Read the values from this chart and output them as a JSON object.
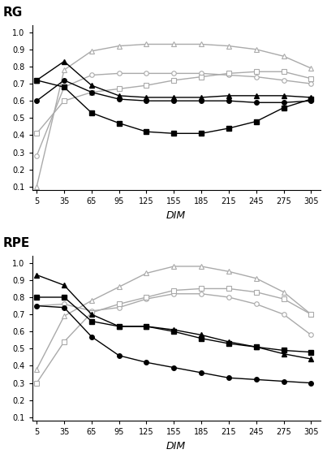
{
  "x": [
    5,
    35,
    65,
    95,
    125,
    155,
    185,
    215,
    245,
    275,
    305
  ],
  "rg": {
    "open_triangle": [
      0.1,
      0.78,
      0.89,
      0.92,
      0.93,
      0.93,
      0.93,
      0.92,
      0.9,
      0.86,
      0.79
    ],
    "open_circle": [
      0.28,
      0.68,
      0.75,
      0.76,
      0.76,
      0.76,
      0.76,
      0.75,
      0.74,
      0.72,
      0.7
    ],
    "open_square": [
      0.41,
      0.6,
      0.65,
      0.67,
      0.69,
      0.72,
      0.74,
      0.76,
      0.77,
      0.77,
      0.73
    ],
    "filled_triangle": [
      0.72,
      0.83,
      0.69,
      0.63,
      0.62,
      0.62,
      0.62,
      0.63,
      0.63,
      0.63,
      0.62
    ],
    "filled_circle": [
      0.6,
      0.72,
      0.65,
      0.61,
      0.6,
      0.6,
      0.6,
      0.6,
      0.59,
      0.59,
      0.6
    ],
    "filled_square": [
      0.72,
      0.68,
      0.53,
      0.47,
      0.42,
      0.41,
      0.41,
      0.44,
      0.48,
      0.56,
      0.61
    ]
  },
  "rpe": {
    "open_triangle": [
      0.38,
      0.69,
      0.78,
      0.86,
      0.94,
      0.98,
      0.98,
      0.95,
      0.91,
      0.83,
      0.7
    ],
    "open_circle": [
      0.75,
      0.76,
      0.72,
      0.74,
      0.79,
      0.82,
      0.82,
      0.8,
      0.76,
      0.7,
      0.58
    ],
    "open_square": [
      0.3,
      0.54,
      0.71,
      0.76,
      0.8,
      0.84,
      0.85,
      0.85,
      0.83,
      0.79,
      0.7
    ],
    "filled_triangle": [
      0.93,
      0.87,
      0.7,
      0.63,
      0.63,
      0.61,
      0.58,
      0.54,
      0.51,
      0.47,
      0.44
    ],
    "filled_circle": [
      0.75,
      0.74,
      0.57,
      0.46,
      0.42,
      0.39,
      0.36,
      0.33,
      0.32,
      0.31,
      0.3
    ],
    "filled_square": [
      0.8,
      0.8,
      0.66,
      0.63,
      0.63,
      0.6,
      0.56,
      0.53,
      0.51,
      0.49,
      0.48
    ]
  },
  "xticks": [
    5,
    35,
    65,
    95,
    125,
    155,
    185,
    215,
    245,
    275,
    305
  ],
  "yticks": [
    0.1,
    0.2,
    0.3,
    0.4,
    0.5,
    0.6,
    0.7,
    0.8,
    0.9,
    1.0
  ],
  "ylim": [
    0.08,
    1.04
  ],
  "xlim": [
    0,
    315
  ],
  "xlabel": "DIM",
  "rg_ylabel": "RG",
  "rpe_ylabel": "RPE",
  "gray_color": "#aaaaaa",
  "black_color": "#000000",
  "marker_size": 4,
  "line_width": 1.0,
  "tick_fontsize": 7,
  "xlabel_fontsize": 9,
  "ylabel_fontsize": 11
}
